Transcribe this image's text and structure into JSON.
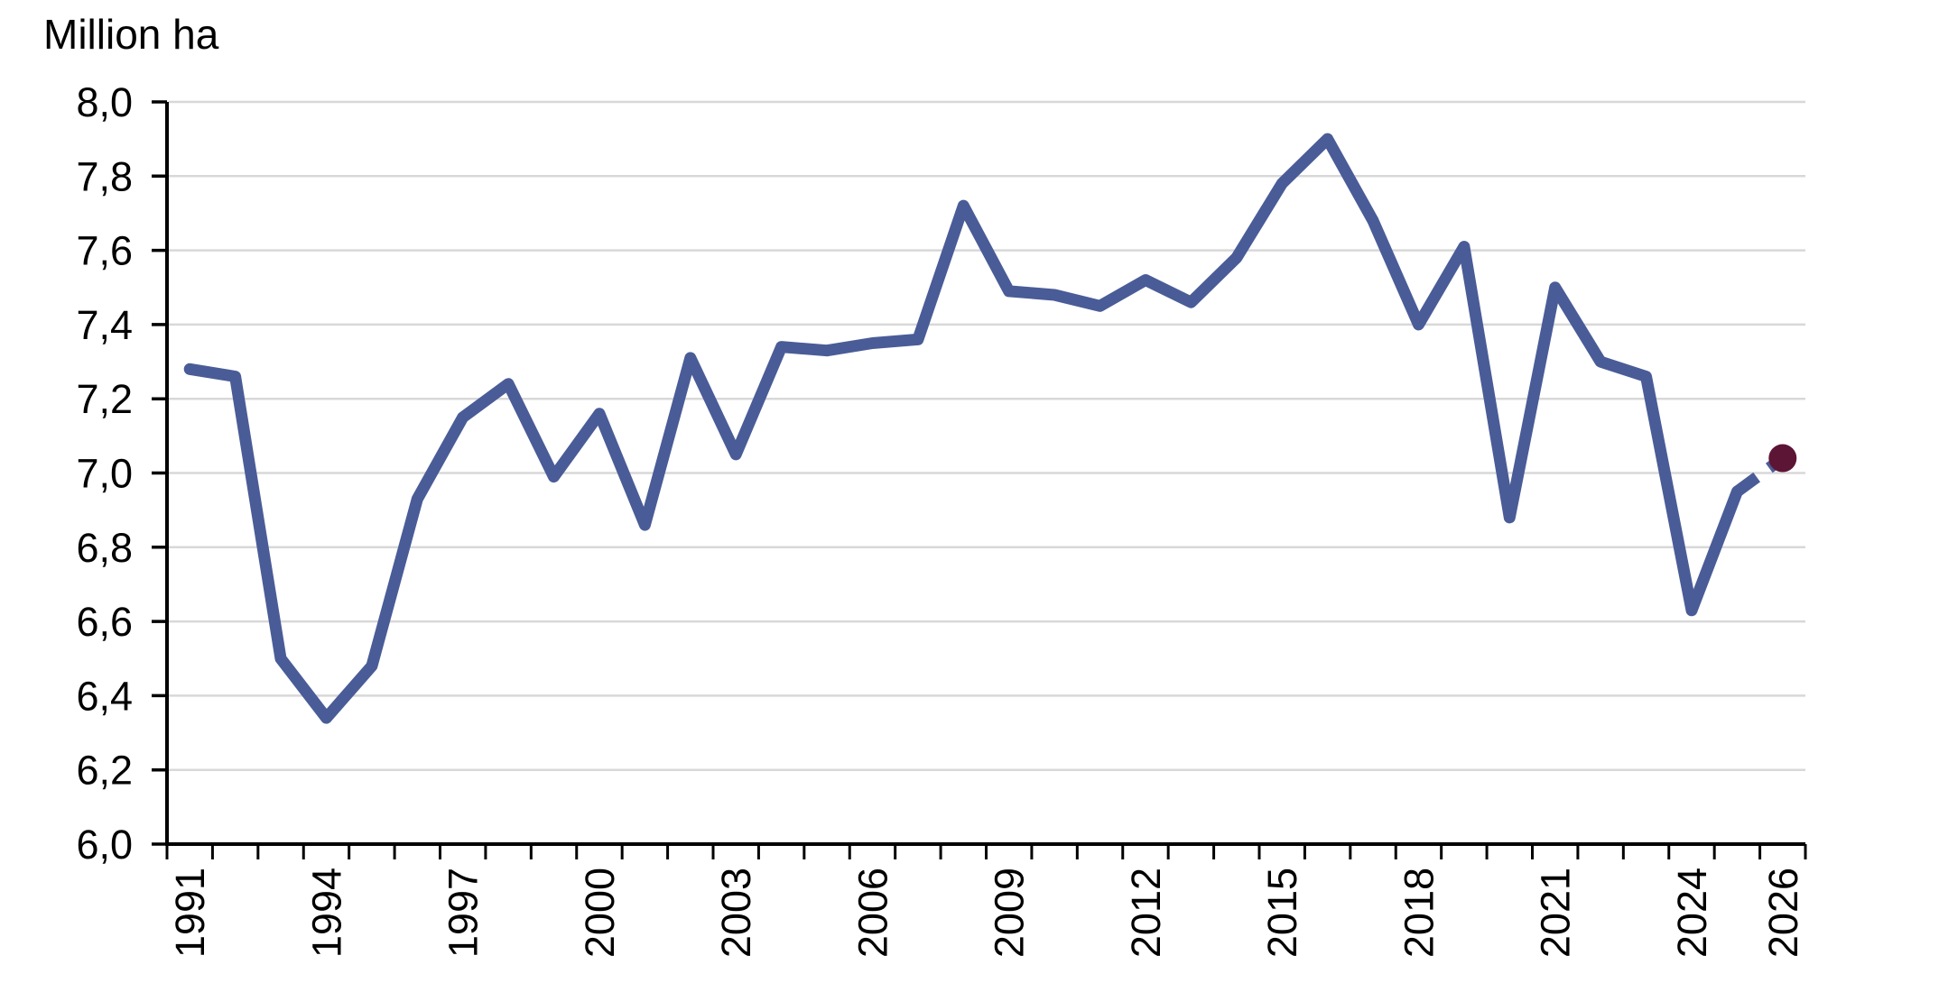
{
  "title": "Million ha",
  "colors": {
    "background": "#ffffff",
    "line": "#4a5c97",
    "forecast": "#5d1535",
    "gridline": "#d8d8d8",
    "axis": "#000000",
    "text": "#000000"
  },
  "chart_data": {
    "type": "line",
    "title": "Million ha",
    "xlabel": "",
    "ylabel": "Million ha",
    "grid": "horizontal",
    "legend": "none",
    "ylim": [
      6.0,
      8.0
    ],
    "x": [
      1991,
      1992,
      1993,
      1994,
      1995,
      1996,
      1997,
      1998,
      1999,
      2000,
      2001,
      2002,
      2003,
      2004,
      2005,
      2006,
      2007,
      2008,
      2009,
      2010,
      2011,
      2012,
      2013,
      2014,
      2015,
      2016,
      2017,
      2018,
      2019,
      2020,
      2021,
      2022,
      2023,
      2024,
      2025,
      2026
    ],
    "series": [
      {
        "values": [
          7.28,
          7.26,
          6.5,
          6.34,
          6.48,
          6.93,
          7.15,
          7.24,
          6.99,
          7.16,
          6.86,
          7.31,
          7.05,
          7.34,
          7.33,
          7.35,
          7.36,
          7.72,
          7.49,
          7.48,
          7.45,
          7.52,
          7.46,
          7.58,
          7.78,
          7.9,
          7.68,
          7.4,
          7.61,
          6.88,
          7.5,
          7.3,
          7.26,
          6.63,
          6.95,
          7.04
        ],
        "solid_through_year": 2025
      }
    ],
    "forecast": {
      "year": 2026,
      "value": 7.04,
      "marker": "dot",
      "line_style": "dashed"
    },
    "y_ticks": [
      6.0,
      6.2,
      6.4,
      6.6,
      6.8,
      7.0,
      7.2,
      7.4,
      7.6,
      7.8,
      8.0
    ],
    "y_tick_labels": [
      "6,0",
      "6,2",
      "6,4",
      "6,6",
      "6,8",
      "7,0",
      "7,2",
      "7,4",
      "7,6",
      "7,8",
      "8,0"
    ],
    "x_tick_label_years": [
      1991,
      1994,
      1997,
      2000,
      2003,
      2006,
      2009,
      2012,
      2015,
      2018,
      2021,
      2024,
      2026
    ]
  }
}
